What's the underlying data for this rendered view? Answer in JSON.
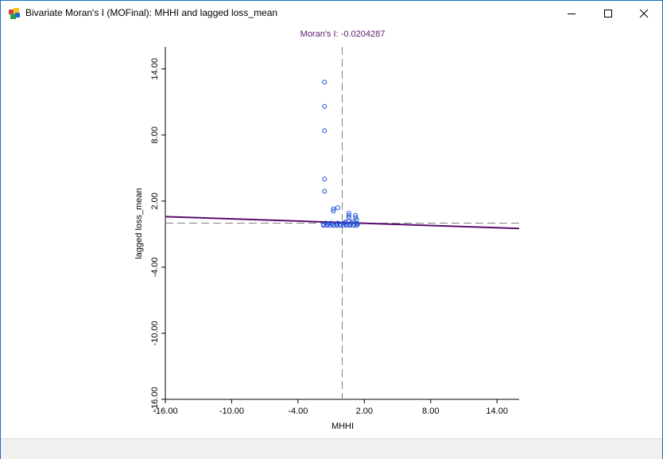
{
  "window": {
    "title": "Bivariate Moran's I (MOFinal): MHHI and lagged loss_mean",
    "controls": [
      "minimize-icon",
      "maximize-icon",
      "close-icon"
    ]
  },
  "colors": {
    "title_text": "#5a1a6e",
    "points": "#1f4fd6",
    "regression_line": "#5a0d6e",
    "mean_lines": "#808080"
  },
  "chart_data": {
    "type": "scatter",
    "title": "Moran's I: -0.0204287",
    "xlabel": "MHHI",
    "ylabel": "lagged loss_mean",
    "xlim": [
      -16,
      16
    ],
    "ylim": [
      -16,
      16
    ],
    "x_ticks": [
      "-16.00",
      "-10.00",
      "-4.00",
      "2.00",
      "8.00",
      "14.00"
    ],
    "y_ticks": [
      "-16.00",
      "-10.00",
      "-4.00",
      "2.00",
      "8.00",
      "14.00"
    ],
    "x_mean": 0,
    "y_mean": 0,
    "regression": {
      "slope": -0.02,
      "intercept": -0.02
    },
    "points": [
      [
        -1.6,
        12.8
      ],
      [
        -1.6,
        10.6
      ],
      [
        -1.6,
        8.4
      ],
      [
        -1.6,
        4.0
      ],
      [
        -1.6,
        2.9
      ],
      [
        -0.8,
        1.3
      ],
      [
        -0.8,
        1.1
      ],
      [
        -0.4,
        1.4
      ],
      [
        0.6,
        0.9
      ],
      [
        0.6,
        0.7
      ],
      [
        0.6,
        0.5
      ],
      [
        1.2,
        0.7
      ],
      [
        1.2,
        0.5
      ],
      [
        -1.7,
        -0.2
      ],
      [
        -1.4,
        -0.2
      ],
      [
        -1.1,
        -0.2
      ],
      [
        -0.8,
        -0.2
      ],
      [
        -0.5,
        -0.2
      ],
      [
        -0.2,
        -0.2
      ],
      [
        0.1,
        -0.2
      ],
      [
        0.4,
        -0.2
      ],
      [
        0.7,
        -0.2
      ],
      [
        1.0,
        -0.2
      ],
      [
        1.3,
        -0.2
      ],
      [
        -1.7,
        -0.1
      ],
      [
        -1.3,
        -0.1
      ],
      [
        -0.9,
        -0.1
      ],
      [
        -0.5,
        -0.1
      ],
      [
        -0.1,
        -0.1
      ],
      [
        0.3,
        -0.1
      ],
      [
        0.7,
        -0.1
      ],
      [
        1.1,
        -0.1
      ],
      [
        1.4,
        -0.1
      ],
      [
        -1.5,
        0.0
      ],
      [
        -1.0,
        0.0
      ],
      [
        -0.4,
        0.0
      ],
      [
        0.2,
        0.0
      ],
      [
        0.8,
        0.0
      ],
      [
        1.3,
        0.0
      ],
      [
        0.6,
        0.2
      ],
      [
        0.9,
        0.1
      ],
      [
        1.3,
        0.3
      ],
      [
        0.3,
        0.1
      ]
    ]
  }
}
